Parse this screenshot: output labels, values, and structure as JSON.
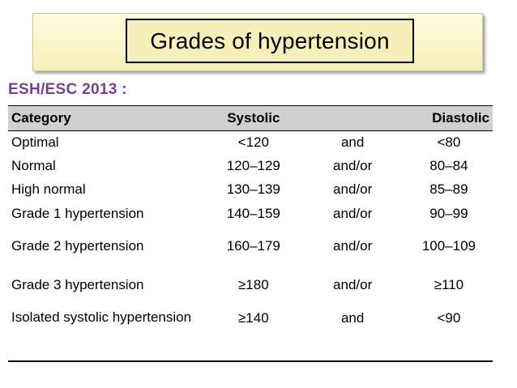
{
  "title": "Grades of hypertension",
  "subtitle": "ESH/ESC 2013 :",
  "colors": {
    "title_bg": "#f6efbc",
    "subtitle_text": "#7a3b99",
    "header_bg": "#d0d0d0"
  },
  "table": {
    "headers": {
      "category": "Category",
      "systolic": "Systolic",
      "connector": "",
      "diastolic": "Diastolic"
    },
    "rows": [
      {
        "category": "Optimal",
        "systolic": "<120",
        "connector": "and",
        "diastolic": "<80"
      },
      {
        "category": "Normal",
        "systolic": "120–129",
        "connector": "and/or",
        "diastolic": "80–84"
      },
      {
        "category": "High normal",
        "systolic": "130–139",
        "connector": "and/or",
        "diastolic": "85–89"
      },
      {
        "category": "Grade 1 hypertension",
        "systolic": "140–159",
        "connector": "and/or",
        "diastolic": "90–99"
      },
      {
        "category": "Grade 2 hypertension",
        "systolic": "160–179",
        "connector": "and/or",
        "diastolic": "100–109"
      },
      {
        "category": "Grade 3 hypertension",
        "systolic": "≥180",
        "connector": "and/or",
        "diastolic": "≥110"
      },
      {
        "category": "Isolated systolic hypertension",
        "systolic": "≥140",
        "connector": "and",
        "diastolic": "<90"
      }
    ]
  }
}
